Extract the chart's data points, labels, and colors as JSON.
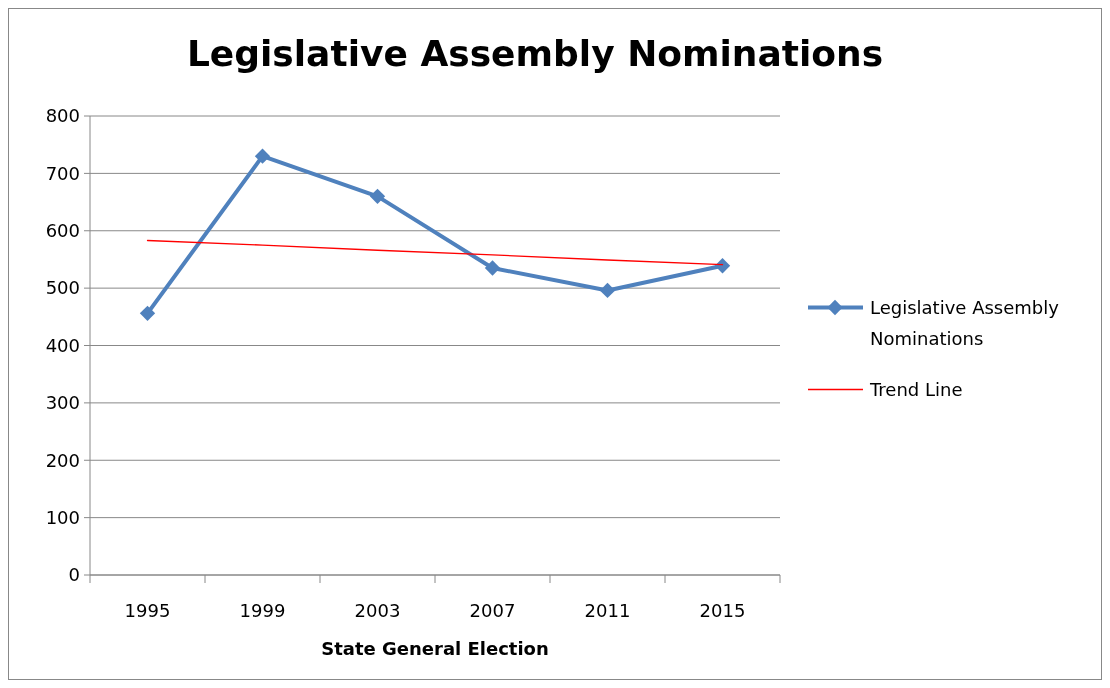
{
  "chart_data": {
    "type": "line",
    "title": "Legislative Assembly Nominations",
    "xlabel": "State General Election",
    "categories": [
      "1995",
      "1999",
      "2003",
      "2007",
      "2011",
      "2015"
    ],
    "series": [
      {
        "name": "Legislative Assembly Nominations",
        "color": "#4f81bd",
        "values": [
          456,
          730,
          660,
          535,
          496,
          539
        ],
        "marker": "diamond"
      },
      {
        "name": "Trend Line",
        "color": "#ff0000",
        "values": [
          583,
          575,
          566,
          558,
          549,
          541
        ],
        "marker": "none"
      }
    ],
    "ylim": [
      0,
      800
    ],
    "yticks": [
      0,
      100,
      200,
      300,
      400,
      500,
      600,
      700,
      800
    ],
    "grid": "y",
    "legend": "right"
  }
}
